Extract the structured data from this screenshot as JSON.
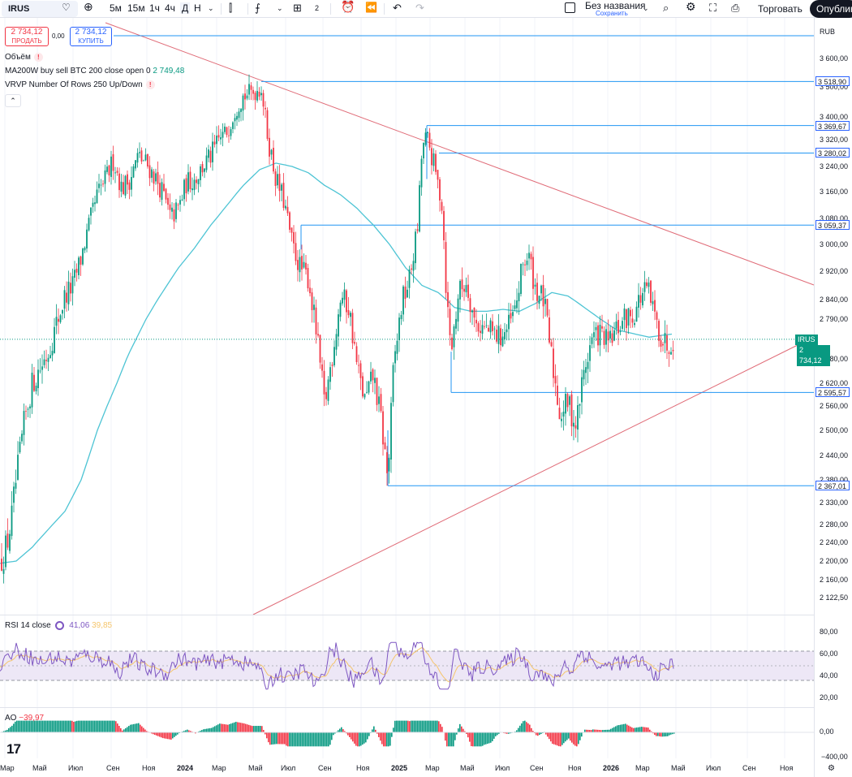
{
  "toolbar": {
    "symbol": "IRUS",
    "intervals": [
      "5м",
      "15м",
      "1ч",
      "4ч",
      "Д",
      "Н"
    ],
    "layout_count": "2",
    "layout_name": "Без названия",
    "saved": "Сохранить",
    "trade": "Торговать",
    "publish": "Опубликовать"
  },
  "order_panel": {
    "sell_price": "2 734,12",
    "sell_label": "ПРОДАТЬ",
    "spread": "0,00",
    "buy_price": "2 734,12",
    "buy_label": "КУПИТЬ"
  },
  "legends": {
    "volume": "Объём",
    "ma": "MA200W buy sell BTC 200 close open 0",
    "ma_value": "2 749,48",
    "vrvp": "VRVP Number Of Rows 250 Up/Down"
  },
  "price_axis": {
    "currency": "RUB",
    "ticks": [
      "3 600,00",
      "3 500,00",
      "3 400,00",
      "3 320,00",
      "3 240,00",
      "3 160,00",
      "3 080,00",
      "3 000,00",
      "2 920,00",
      "2 840,00",
      "2 790,00",
      "2 680,00",
      "2 620,00",
      "2 560,00",
      "2 500,00",
      "2 440,00",
      "2 380,00",
      "2 330,00",
      "2 280,00",
      "2 240,00",
      "2 200,00",
      "2 160,00",
      "2 122,50"
    ],
    "levels": [
      "3 518,90",
      "3 369,67",
      "3 280,02",
      "3 059,37",
      "2 595,57",
      "2 367,01"
    ],
    "current_symbol": "IRUS",
    "current_price": "2 734,12"
  },
  "rsi": {
    "label": "RSI 14 close",
    "value1": "41,06",
    "value2": "39,85",
    "ticks": [
      "80,00",
      "60,00",
      "40,00",
      "20,00"
    ]
  },
  "ao": {
    "label": "AO",
    "value": "−39,97",
    "ticks": [
      "0,00",
      "−400,00"
    ]
  },
  "time_axis": [
    "Мар",
    "Май",
    "Июл",
    "Сен",
    "Ноя",
    "2024",
    "Мар",
    "Май",
    "Июл",
    "Сен",
    "Ноя",
    "2025",
    "Мар",
    "Май",
    "Июл",
    "Сен",
    "Ноя",
    "2026",
    "Мар",
    "Май",
    "Июл",
    "Сен",
    "Ноя"
  ],
  "colors": {
    "up": "#089981",
    "down": "#f23645",
    "ma": "#4dc4d4",
    "trend": "#e06c78",
    "level": "#2196f3",
    "rsi_line": "#7e57c2",
    "rsi_signal": "#f5c56b",
    "rsi_band": "#ede7f6"
  },
  "chart_data": {
    "type": "candlestick",
    "ylim": [
      2100,
      3650
    ],
    "price_path": [
      [
        0,
        2200
      ],
      [
        8,
        2230
      ],
      [
        14,
        2290
      ],
      [
        20,
        2380
      ],
      [
        30,
        2520
      ],
      [
        40,
        2620
      ],
      [
        50,
        2660
      ],
      [
        60,
        2700
      ],
      [
        70,
        2780
      ],
      [
        80,
        2850
      ],
      [
        90,
        2880
      ],
      [
        100,
        2960
      ],
      [
        110,
        3060
      ],
      [
        120,
        3150
      ],
      [
        130,
        3200
      ],
      [
        140,
        3260
      ],
      [
        150,
        3170
      ],
      [
        160,
        3200
      ],
      [
        170,
        3270
      ],
      [
        180,
        3250
      ],
      [
        190,
        3210
      ],
      [
        200,
        3160
      ],
      [
        210,
        3080
      ],
      [
        220,
        3110
      ],
      [
        230,
        3190
      ],
      [
        240,
        3200
      ],
      [
        250,
        3240
      ],
      [
        260,
        3270
      ],
      [
        270,
        3320
      ],
      [
        280,
        3350
      ],
      [
        290,
        3430
      ],
      [
        300,
        3470
      ],
      [
        310,
        3480
      ],
      [
        322,
        3500
      ],
      [
        330,
        3330
      ],
      [
        340,
        3200
      ],
      [
        350,
        3130
      ],
      [
        360,
        3000
      ],
      [
        370,
        2930
      ],
      [
        380,
        2900
      ],
      [
        390,
        2750
      ],
      [
        400,
        2560
      ],
      [
        410,
        2700
      ],
      [
        420,
        2850
      ],
      [
        430,
        2820
      ],
      [
        440,
        2660
      ],
      [
        450,
        2570
      ],
      [
        460,
        2640
      ],
      [
        470,
        2520
      ],
      [
        478,
        2380
      ],
      [
        485,
        2660
      ],
      [
        495,
        2830
      ],
      [
        505,
        2900
      ],
      [
        515,
        3060
      ],
      [
        520,
        3290
      ],
      [
        526,
        3330
      ],
      [
        535,
        3240
      ],
      [
        545,
        3120
      ],
      [
        550,
        2860
      ],
      [
        556,
        2700
      ],
      [
        565,
        2860
      ],
      [
        575,
        2890
      ],
      [
        585,
        2780
      ],
      [
        600,
        2760
      ],
      [
        615,
        2740
      ],
      [
        625,
        2760
      ],
      [
        635,
        2810
      ],
      [
        645,
        2950
      ],
      [
        652,
        2960
      ],
      [
        660,
        2870
      ],
      [
        670,
        2840
      ],
      [
        680,
        2680
      ],
      [
        690,
        2540
      ],
      [
        700,
        2570
      ],
      [
        710,
        2510
      ],
      [
        718,
        2630
      ],
      [
        730,
        2740
      ],
      [
        740,
        2750
      ],
      [
        750,
        2720
      ],
      [
        760,
        2760
      ],
      [
        770,
        2790
      ],
      [
        780,
        2800
      ],
      [
        790,
        2850
      ],
      [
        798,
        2870
      ],
      [
        806,
        2800
      ],
      [
        815,
        2740
      ],
      [
        822,
        2720
      ],
      [
        830,
        2734
      ]
    ],
    "ma_path": [
      [
        0,
        2195
      ],
      [
        20,
        2200
      ],
      [
        40,
        2230
      ],
      [
        60,
        2270
      ],
      [
        80,
        2310
      ],
      [
        100,
        2380
      ],
      [
        120,
        2500
      ],
      [
        140,
        2600
      ],
      [
        160,
        2700
      ],
      [
        180,
        2790
      ],
      [
        200,
        2860
      ],
      [
        220,
        2930
      ],
      [
        240,
        2990
      ],
      [
        260,
        3060
      ],
      [
        280,
        3120
      ],
      [
        300,
        3180
      ],
      [
        320,
        3230
      ],
      [
        340,
        3250
      ],
      [
        360,
        3240
      ],
      [
        380,
        3220
      ],
      [
        400,
        3180
      ],
      [
        420,
        3150
      ],
      [
        440,
        3110
      ],
      [
        460,
        3060
      ],
      [
        480,
        3000
      ],
      [
        500,
        2930
      ],
      [
        520,
        2880
      ],
      [
        540,
        2860
      ],
      [
        560,
        2820
      ],
      [
        580,
        2810
      ],
      [
        600,
        2810
      ],
      [
        620,
        2815
      ],
      [
        640,
        2810
      ],
      [
        660,
        2830
      ],
      [
        680,
        2860
      ],
      [
        700,
        2850
      ],
      [
        720,
        2820
      ],
      [
        740,
        2790
      ],
      [
        760,
        2760
      ],
      [
        780,
        2750
      ],
      [
        800,
        2740
      ],
      [
        815,
        2745
      ],
      [
        830,
        2749
      ]
    ],
    "levels": [
      3518.9,
      3369.67,
      3280.02,
      3059.37,
      2595.57,
      2367.01
    ],
    "current": 2734.12
  }
}
